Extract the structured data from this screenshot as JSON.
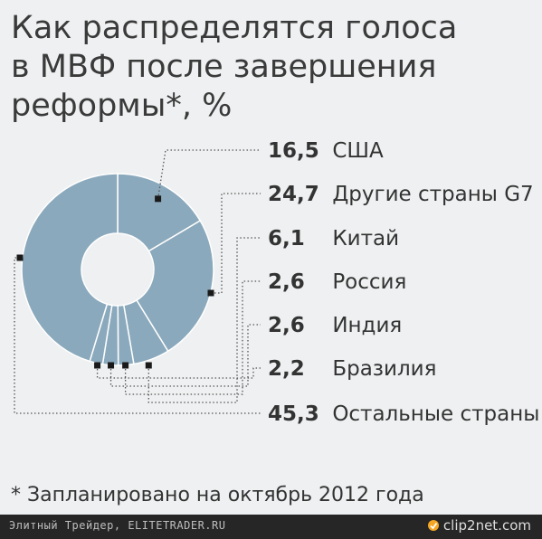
{
  "chart_data": {
    "type": "pie",
    "title": "Как распределятся голоса\nв МВФ после завершения\nреформы*, %",
    "donut": true,
    "categories": [
      "США",
      "Другие страны G7",
      "Китай",
      "Россия",
      "Индия",
      "Бразилия",
      "Остальные страны"
    ],
    "values": [
      16.5,
      24.7,
      6.1,
      2.6,
      2.6,
      2.2,
      45.3
    ],
    "value_labels": [
      "16,5",
      "24,7",
      "6,1",
      "2,6",
      "2,6",
      "2,2",
      "45,3"
    ],
    "colors": {
      "slice": "#8ba9bc",
      "slice_border": "#ffffff",
      "leader": "#555555",
      "marker": "#1a1a1a"
    },
    "footnote": "* Запланировано на октябрь 2012 года"
  },
  "watermark": {
    "left_text": "Элитный Трейдер, ELITETRADER.RU",
    "right_text": "clip2net.com"
  }
}
